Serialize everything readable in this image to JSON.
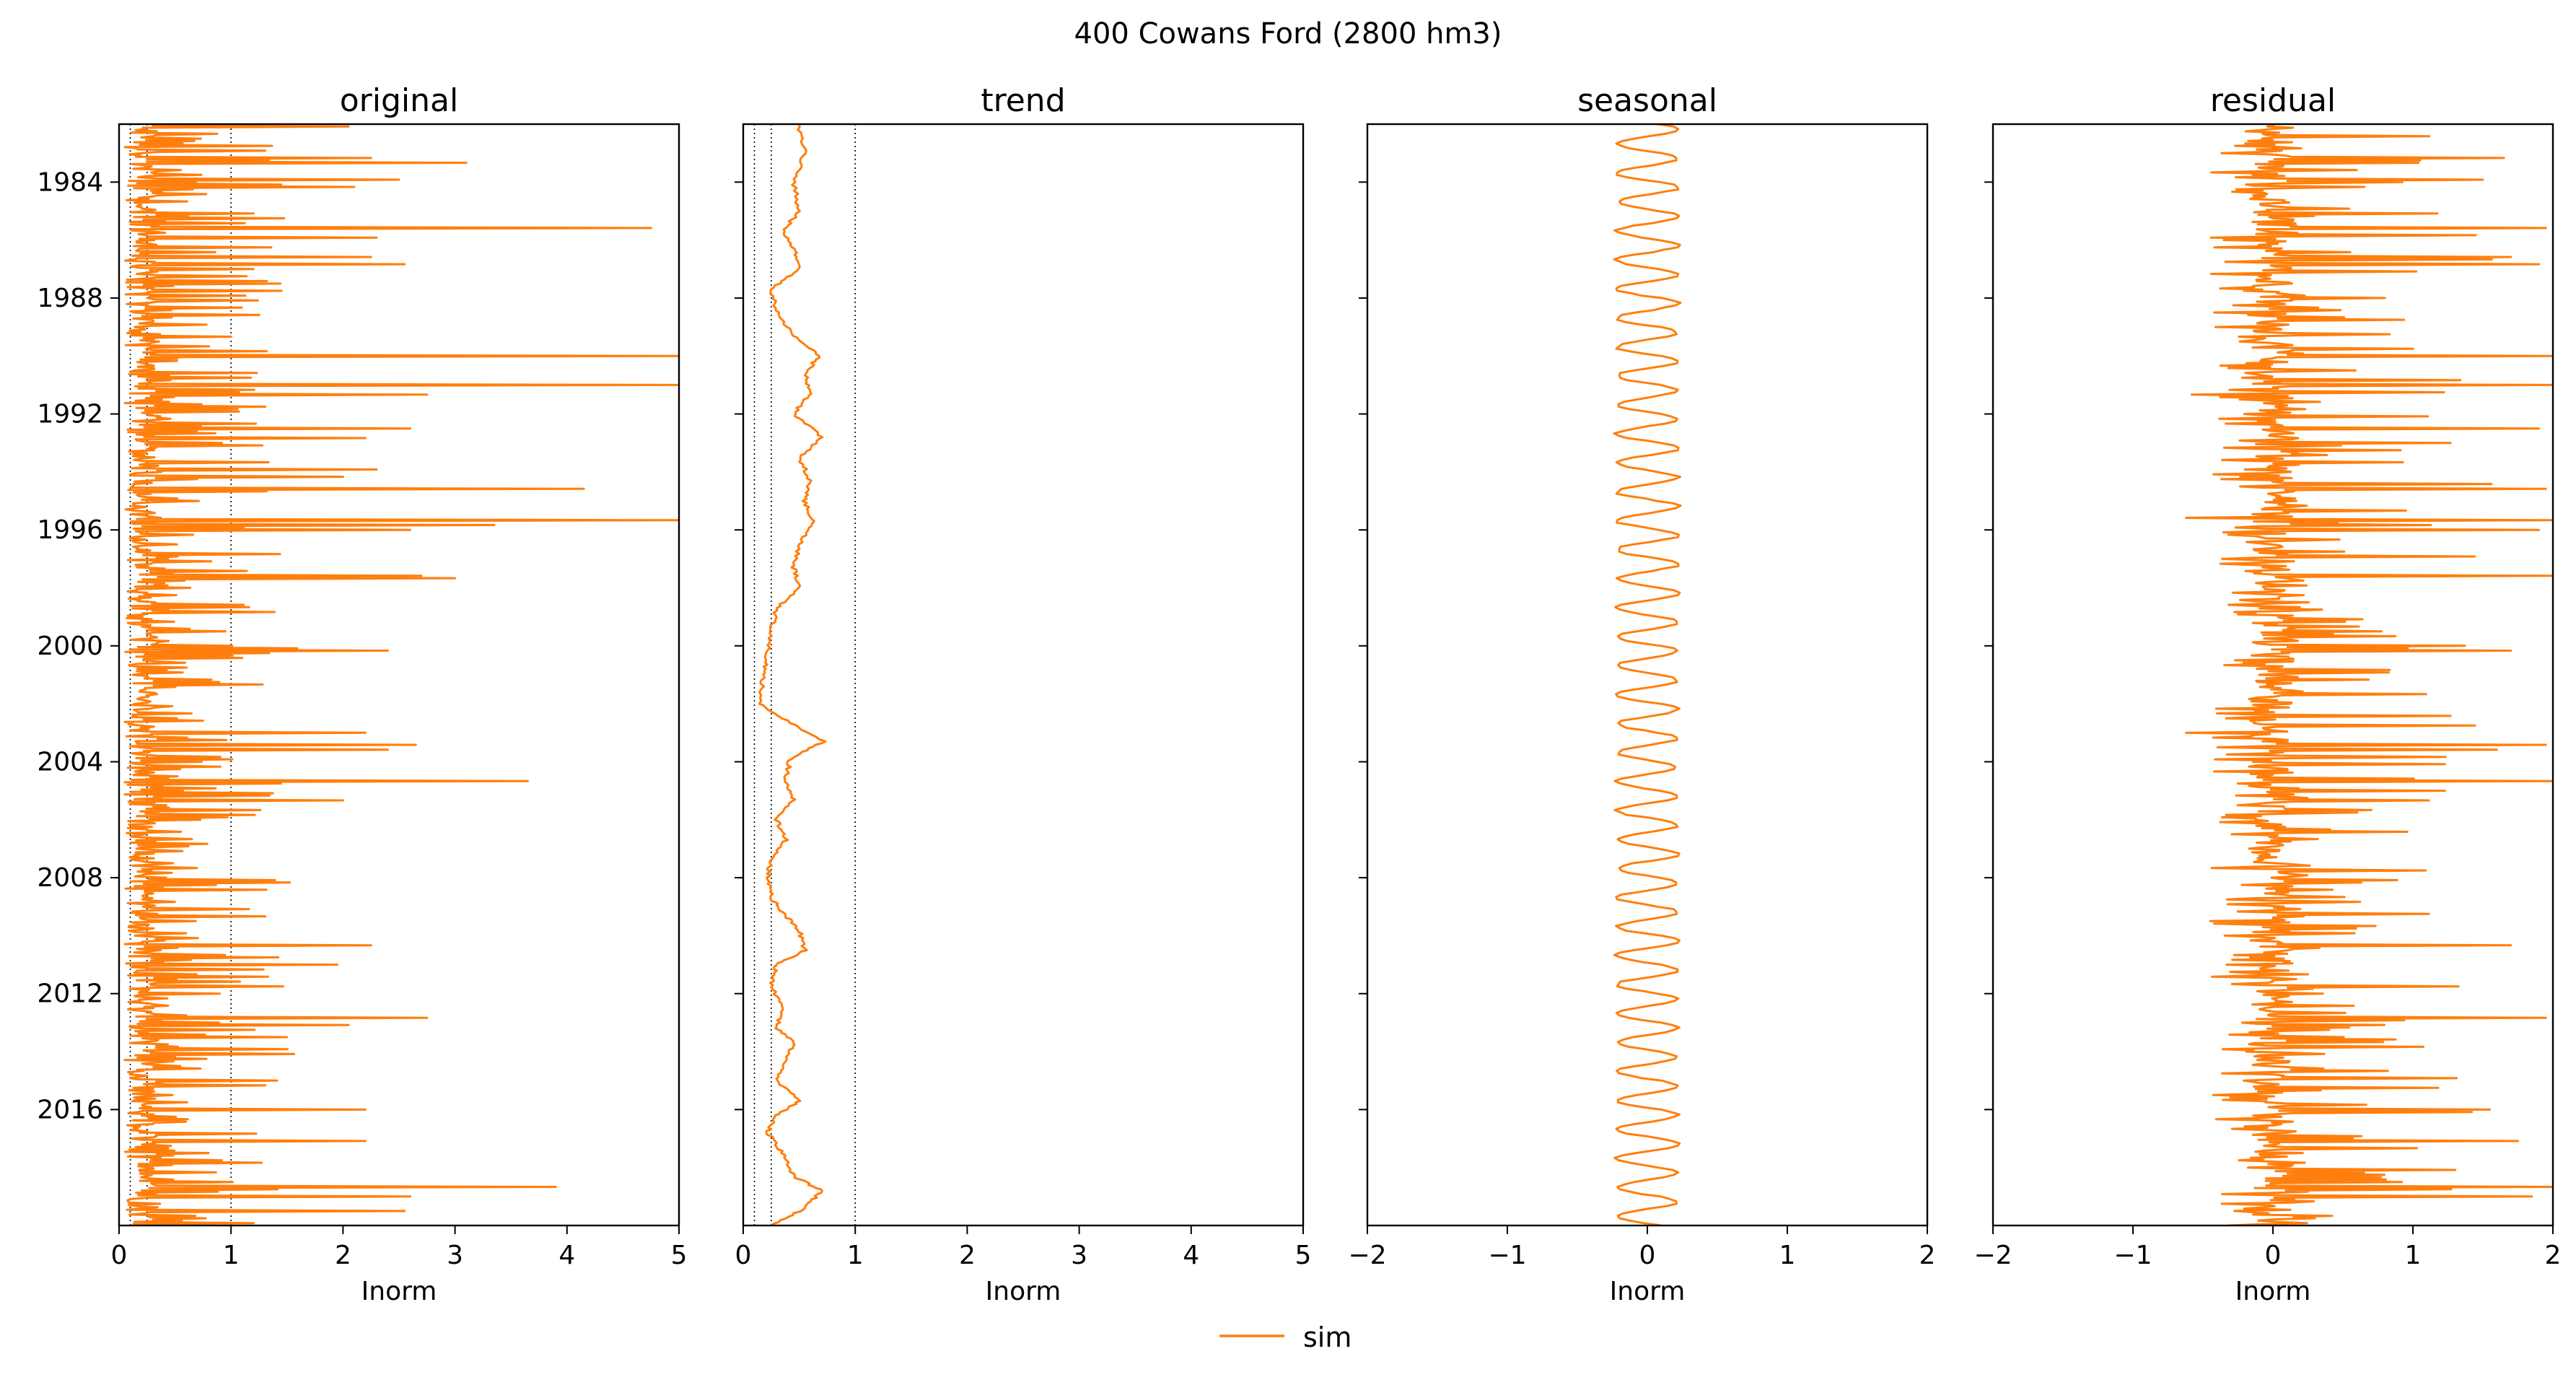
{
  "figure": {
    "suptitle": "400  Cowans Ford (2800 hm3)"
  },
  "legend": {
    "entries": [
      {
        "label": "sim",
        "color": "#ff7f0e"
      }
    ],
    "placement": "bottom-center"
  },
  "chart_data": [
    {
      "type": "line",
      "title": "original",
      "xlabel": "Inorm",
      "xlim": [
        0,
        5
      ],
      "xticks": [
        "0",
        "1",
        "2",
        "3",
        "4",
        "5"
      ],
      "ylim": [
        1982.0,
        2020.0
      ],
      "yticks": [
        "1984",
        "1988",
        "1992",
        "1996",
        "2000",
        "2004",
        "2008",
        "2012",
        "2016"
      ],
      "reference_lines_x": [
        0.1,
        0.25,
        1.0
      ],
      "series": [
        {
          "name": "sim",
          "color": "#ff7f0e",
          "profile": "spiky",
          "base": 0.2,
          "spread": 0.6,
          "min": 0,
          "max": 5,
          "peaks": [
            [
              1982.1,
              2.05
            ],
            [
              1983.2,
              2.25
            ],
            [
              1983.3,
              3.1
            ],
            [
              1983.9,
              2.5
            ],
            [
              1984.2,
              2.1
            ],
            [
              1985.6,
              4.75
            ],
            [
              1985.9,
              2.3
            ],
            [
              1986.6,
              2.25
            ],
            [
              1986.8,
              2.55
            ],
            [
              1990.0,
              2.4
            ],
            [
              1990.0,
              5.0
            ],
            [
              1991.0,
              5.0
            ],
            [
              1991.3,
              2.75
            ],
            [
              1992.5,
              2.6
            ],
            [
              1992.8,
              2.2
            ],
            [
              1993.9,
              2.3
            ],
            [
              1994.2,
              2.0
            ],
            [
              1994.6,
              4.15
            ],
            [
              1995.7,
              5.0
            ],
            [
              1995.8,
              3.35
            ],
            [
              1996.0,
              2.6
            ],
            [
              1997.6,
              2.7
            ],
            [
              1997.7,
              3.0
            ],
            [
              2000.2,
              2.4
            ],
            [
              2003.0,
              2.2
            ],
            [
              2003.4,
              2.65
            ],
            [
              2003.6,
              2.4
            ],
            [
              2004.7,
              3.65
            ],
            [
              2005.3,
              2.0
            ],
            [
              2010.3,
              2.25
            ],
            [
              2011.0,
              1.95
            ],
            [
              2012.8,
              2.75
            ],
            [
              2013.1,
              2.05
            ],
            [
              2016.0,
              2.2
            ],
            [
              2017.1,
              2.2
            ],
            [
              2018.7,
              3.9
            ],
            [
              2019.0,
              2.6
            ],
            [
              2019.5,
              2.55
            ]
          ]
        }
      ]
    },
    {
      "type": "line",
      "title": "trend",
      "xlabel": "Inorm",
      "xlim": [
        0,
        5
      ],
      "xticks": [
        "0",
        "1",
        "2",
        "3",
        "4",
        "5"
      ],
      "ylim": [
        1982.0,
        2020.0
      ],
      "reference_lines_x": [
        0.1,
        0.25,
        1.0
      ],
      "series": [
        {
          "name": "sim",
          "color": "#ff7f0e",
          "profile": "smooth",
          "points": [
            [
              1982.0,
              0.48
            ],
            [
              1983.0,
              0.55
            ],
            [
              1984.0,
              0.45
            ],
            [
              1985.0,
              0.5
            ],
            [
              1985.7,
              0.35
            ],
            [
              1986.3,
              0.45
            ],
            [
              1987.0,
              0.5
            ],
            [
              1987.7,
              0.25
            ],
            [
              1988.5,
              0.3
            ],
            [
              1989.3,
              0.45
            ],
            [
              1990.0,
              0.68
            ],
            [
              1990.6,
              0.55
            ],
            [
              1991.3,
              0.6
            ],
            [
              1992.0,
              0.45
            ],
            [
              1992.8,
              0.7
            ],
            [
              1993.5,
              0.5
            ],
            [
              1994.3,
              0.6
            ],
            [
              1995.0,
              0.55
            ],
            [
              1995.7,
              0.62
            ],
            [
              1996.5,
              0.5
            ],
            [
              1997.3,
              0.45
            ],
            [
              1998.0,
              0.5
            ],
            [
              1998.7,
              0.3
            ],
            [
              1999.5,
              0.25
            ],
            [
              2000.3,
              0.22
            ],
            [
              2001.0,
              0.18
            ],
            [
              2002.0,
              0.15
            ],
            [
              2002.5,
              0.35
            ],
            [
              2003.3,
              0.72
            ],
            [
              2003.9,
              0.42
            ],
            [
              2004.6,
              0.38
            ],
            [
              2005.3,
              0.45
            ],
            [
              2006.0,
              0.3
            ],
            [
              2006.7,
              0.38
            ],
            [
              2007.3,
              0.25
            ],
            [
              2008.0,
              0.22
            ],
            [
              2008.7,
              0.25
            ],
            [
              2009.2,
              0.35
            ],
            [
              2009.8,
              0.5
            ],
            [
              2010.5,
              0.55
            ],
            [
              2011.0,
              0.3
            ],
            [
              2011.7,
              0.25
            ],
            [
              2012.5,
              0.35
            ],
            [
              2013.2,
              0.3
            ],
            [
              2013.7,
              0.45
            ],
            [
              2014.3,
              0.38
            ],
            [
              2015.0,
              0.3
            ],
            [
              2015.7,
              0.5
            ],
            [
              2016.2,
              0.3
            ],
            [
              2016.8,
              0.22
            ],
            [
              2017.5,
              0.35
            ],
            [
              2018.3,
              0.45
            ],
            [
              2018.8,
              0.7
            ],
            [
              2019.4,
              0.55
            ],
            [
              2020.0,
              0.25
            ]
          ]
        }
      ]
    },
    {
      "type": "line",
      "title": "seasonal",
      "xlabel": "Inorm",
      "xlim": [
        -2,
        2
      ],
      "xticks": [
        "−2",
        "−1",
        "0",
        "1",
        "2"
      ],
      "ylim": [
        1982.0,
        2020.0
      ],
      "series": [
        {
          "name": "sim",
          "color": "#ff7f0e",
          "profile": "periodic",
          "amplitude": 0.22,
          "period": 1
        }
      ]
    },
    {
      "type": "line",
      "title": "residual",
      "xlabel": "Inorm",
      "xlim": [
        -2,
        2
      ],
      "xticks": [
        "−2",
        "−1",
        "0",
        "1",
        "2"
      ],
      "ylim": [
        1982.0,
        2020.0
      ],
      "series": [
        {
          "name": "sim",
          "color": "#ff7f0e",
          "profile": "spiky",
          "base": 0.0,
          "spread": 0.7,
          "min": -2,
          "max": 2,
          "peaks": [
            [
              1983.2,
              1.65
            ],
            [
              1983.9,
              1.5
            ],
            [
              1985.6,
              1.95
            ],
            [
              1986.6,
              1.7
            ],
            [
              1986.8,
              1.9
            ],
            [
              1990.0,
              2.0
            ],
            [
              1991.0,
              2.0
            ],
            [
              1991.3,
              1.7
            ],
            [
              1992.5,
              1.9
            ],
            [
              1994.6,
              1.95
            ],
            [
              1995.7,
              2.0
            ],
            [
              1996.0,
              1.9
            ],
            [
              1997.6,
              2.0
            ],
            [
              2000.2,
              1.7
            ],
            [
              2003.4,
              1.95
            ],
            [
              2003.6,
              1.6
            ],
            [
              2004.7,
              2.0
            ],
            [
              2010.3,
              1.7
            ],
            [
              2012.8,
              1.95
            ],
            [
              2016.0,
              1.55
            ],
            [
              2017.1,
              1.75
            ],
            [
              2018.7,
              2.0
            ],
            [
              2019.0,
              1.85
            ],
            [
              2003.0,
              -0.62
            ],
            [
              1995.6,
              -0.62
            ],
            [
              1991.3,
              -0.58
            ]
          ]
        }
      ]
    }
  ]
}
